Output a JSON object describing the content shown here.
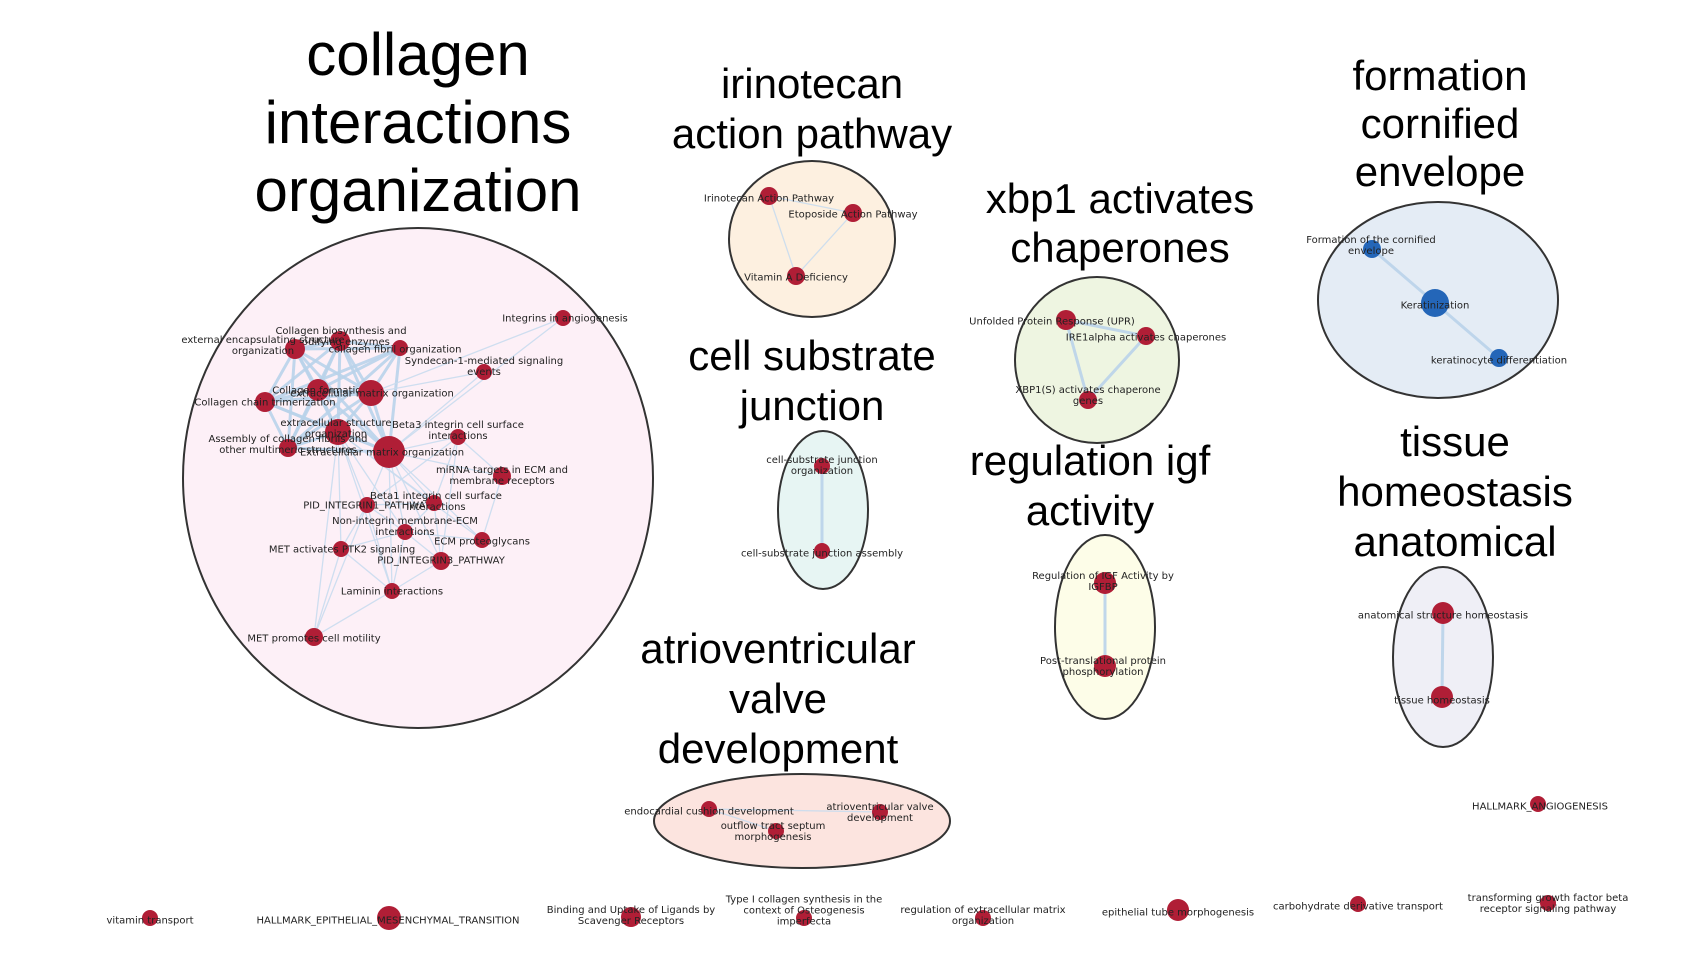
{
  "colors": {
    "node_red": "#b01e36",
    "node_blue": "#2466b8",
    "edge": "#b9d3ea",
    "edge_thin": "#c9dcee",
    "cluster_stroke": "#333333"
  },
  "clusters": [
    {
      "id": "collagen",
      "title_lines": [
        "collagen",
        "interactions",
        "organization"
      ],
      "fill": "#fdf0f7"
    },
    {
      "id": "irinotecan",
      "title_lines": [
        "irinotecan",
        "action pathway"
      ],
      "fill": "#fdf0e0"
    },
    {
      "id": "cornified",
      "title_lines": [
        "formation",
        "cornified",
        "envelope"
      ],
      "fill": "#e4ecf5"
    },
    {
      "id": "xbp1",
      "title_lines": [
        "xbp1 activates",
        "chaperones"
      ],
      "fill": "#eef5e1"
    },
    {
      "id": "cellsub",
      "title_lines": [
        "cell substrate",
        "junction"
      ],
      "fill": "#e7f5f3"
    },
    {
      "id": "igf",
      "title_lines": [
        "regulation igf",
        "activity"
      ],
      "fill": "#fdfde8"
    },
    {
      "id": "tissue",
      "title_lines": [
        "tissue",
        "homeostasis",
        "anatomical"
      ],
      "fill": "#efeff6"
    },
    {
      "id": "avv",
      "title_lines": [
        "atrioventricular",
        "valve",
        "development"
      ],
      "fill": "#fce4df"
    }
  ],
  "nodes": [
    {
      "id": "c1",
      "label_lines": [
        "Integrins in angiogenesis"
      ],
      "color": "red"
    },
    {
      "id": "c2",
      "label_lines": [
        "Collagen biosynthesis and",
        "modifying enzymes"
      ],
      "color": "red"
    },
    {
      "id": "c3",
      "label_lines": [
        "external encapsulating structure",
        "organization"
      ],
      "color": "red"
    },
    {
      "id": "c4",
      "label_lines": [
        "collagen fibril organization"
      ],
      "color": "red"
    },
    {
      "id": "c5",
      "label_lines": [
        "Syndecan-1-mediated signaling",
        "events"
      ],
      "color": "red"
    },
    {
      "id": "c6",
      "label_lines": [
        "Collagen formation"
      ],
      "color": "red"
    },
    {
      "id": "c7",
      "label_lines": [
        "extracellular matrix organization"
      ],
      "color": "red"
    },
    {
      "id": "c8",
      "label_lines": [
        "Collagen chain trimerization"
      ],
      "color": "red"
    },
    {
      "id": "c9",
      "label_lines": [
        "extracellular structure",
        "organization"
      ],
      "color": "red"
    },
    {
      "id": "c10",
      "label_lines": [
        "Beta3 integrin cell surface",
        "interactions"
      ],
      "color": "red"
    },
    {
      "id": "c11",
      "label_lines": [
        "Assembly of collagen fibrils and",
        "other multimeric structures"
      ],
      "color": "red"
    },
    {
      "id": "c12",
      "label_lines": [
        "Extracellular matrix organization"
      ],
      "color": "red"
    },
    {
      "id": "c13",
      "label_lines": [
        "miRNA targets in ECM and",
        "membrane receptors"
      ],
      "color": "red"
    },
    {
      "id": "c14",
      "label_lines": [
        "PID_INTEGRIN1_PATHWAY"
      ],
      "color": "red"
    },
    {
      "id": "c15",
      "label_lines": [
        "Beta1 integrin cell surface",
        "interactions"
      ],
      "color": "red"
    },
    {
      "id": "c16",
      "label_lines": [
        "Non-integrin membrane-ECM",
        "interactions"
      ],
      "color": "red"
    },
    {
      "id": "c17",
      "label_lines": [
        "ECM proteoglycans"
      ],
      "color": "red"
    },
    {
      "id": "c18",
      "label_lines": [
        "MET activates PTK2 signaling"
      ],
      "color": "red"
    },
    {
      "id": "c19",
      "label_lines": [
        "PID_INTEGRIN3_PATHWAY"
      ],
      "color": "red"
    },
    {
      "id": "c20",
      "label_lines": [
        "Laminin interactions"
      ],
      "color": "red"
    },
    {
      "id": "c21",
      "label_lines": [
        "MET promotes cell motility"
      ],
      "color": "red"
    },
    {
      "id": "i1",
      "label_lines": [
        "Irinotecan Action Pathway"
      ],
      "color": "red"
    },
    {
      "id": "i2",
      "label_lines": [
        "Etoposide Action Pathway"
      ],
      "color": "red"
    },
    {
      "id": "i3",
      "label_lines": [
        "Vitamin A Deficiency"
      ],
      "color": "red"
    },
    {
      "id": "f1",
      "label_lines": [
        "Formation of the cornified",
        "envelope"
      ],
      "color": "blue"
    },
    {
      "id": "f2",
      "label_lines": [
        "Keratinization"
      ],
      "color": "blue"
    },
    {
      "id": "f3",
      "label_lines": [
        "keratinocyte differentiation"
      ],
      "color": "blue"
    },
    {
      "id": "x1",
      "label_lines": [
        "Unfolded Protein Response (UPR)"
      ],
      "color": "red"
    },
    {
      "id": "x2",
      "label_lines": [
        "IRE1alpha activates chaperones"
      ],
      "color": "red"
    },
    {
      "id": "x3",
      "label_lines": [
        "XBP1(S) activates chaperone",
        "genes"
      ],
      "color": "red"
    },
    {
      "id": "s1",
      "label_lines": [
        "cell-substrate junction",
        "organization"
      ],
      "color": "red"
    },
    {
      "id": "s2",
      "label_lines": [
        "cell-substrate junction assembly"
      ],
      "color": "red"
    },
    {
      "id": "g1",
      "label_lines": [
        "Regulation of IGF Activity by",
        "IGFBP"
      ],
      "color": "red"
    },
    {
      "id": "g2",
      "label_lines": [
        "Post-translational protein",
        "phosphorylation"
      ],
      "color": "red"
    },
    {
      "id": "t1",
      "label_lines": [
        "anatomical structure homeostasis"
      ],
      "color": "red"
    },
    {
      "id": "t2",
      "label_lines": [
        "tissue homeostasis"
      ],
      "color": "red"
    },
    {
      "id": "a1",
      "label_lines": [
        "endocardial cushion development"
      ],
      "color": "red"
    },
    {
      "id": "a2",
      "label_lines": [
        "atrioventricular valve",
        "development"
      ],
      "color": "red"
    },
    {
      "id": "a3",
      "label_lines": [
        "outflow tract septum",
        "morphogenesis"
      ],
      "color": "red"
    },
    {
      "id": "h1",
      "label_lines": [
        "HALLMARK_ANGIOGENESIS"
      ],
      "color": "red"
    },
    {
      "id": "b1",
      "label_lines": [
        "vitamin transport"
      ],
      "color": "red"
    },
    {
      "id": "b2",
      "label_lines": [
        "HALLMARK_EPITHELIAL_MESENCHYMAL_TRANSITION"
      ],
      "color": "red"
    },
    {
      "id": "b3",
      "label_lines": [
        "Binding and Uptake of Ligands by",
        "Scavenger Receptors"
      ],
      "color": "red"
    },
    {
      "id": "b4",
      "label_lines": [
        "Type I collagen synthesis in the",
        "context of Osteogenesis",
        "imperfecta"
      ],
      "color": "red"
    },
    {
      "id": "b5",
      "label_lines": [
        "regulation of extracellular matrix",
        "organization"
      ],
      "color": "red"
    },
    {
      "id": "b6",
      "label_lines": [
        "epithelial tube morphogenesis"
      ],
      "color": "red"
    },
    {
      "id": "b7",
      "label_lines": [
        "carbohydrate derivative transport"
      ],
      "color": "red"
    },
    {
      "id": "b8",
      "label_lines": [
        "transforming growth factor beta",
        "receptor signaling pathway"
      ],
      "color": "red"
    }
  ],
  "edges": [
    [
      "c2",
      "c4"
    ],
    [
      "c2",
      "c6"
    ],
    [
      "c2",
      "c3"
    ],
    [
      "c2",
      "c8"
    ],
    [
      "c2",
      "c7"
    ],
    [
      "c2",
      "c9"
    ],
    [
      "c2",
      "c12"
    ],
    [
      "c2",
      "c11"
    ],
    [
      "c3",
      "c4"
    ],
    [
      "c3",
      "c6"
    ],
    [
      "c3",
      "c7"
    ],
    [
      "c3",
      "c8"
    ],
    [
      "c3",
      "c9"
    ],
    [
      "c3",
      "c11"
    ],
    [
      "c3",
      "c12"
    ],
    [
      "c4",
      "c6"
    ],
    [
      "c4",
      "c7"
    ],
    [
      "c4",
      "c8"
    ],
    [
      "c4",
      "c11"
    ],
    [
      "c4",
      "c12"
    ],
    [
      "c6",
      "c7"
    ],
    [
      "c6",
      "c8"
    ],
    [
      "c6",
      "c9"
    ],
    [
      "c6",
      "c11"
    ],
    [
      "c6",
      "c12"
    ],
    [
      "c7",
      "c9"
    ],
    [
      "c7",
      "c12"
    ],
    [
      "c7",
      "c11"
    ],
    [
      "c7",
      "c8"
    ],
    [
      "c8",
      "c9"
    ],
    [
      "c8",
      "c11"
    ],
    [
      "c8",
      "c12"
    ],
    [
      "c9",
      "c11"
    ],
    [
      "c9",
      "c12"
    ],
    [
      "c11",
      "c12"
    ],
    [
      "c12",
      "c10"
    ],
    [
      "c12",
      "c13"
    ],
    [
      "c12",
      "c14"
    ],
    [
      "c12",
      "c15"
    ],
    [
      "c12",
      "c16"
    ],
    [
      "c12",
      "c17"
    ],
    [
      "c12",
      "c19"
    ],
    [
      "c12",
      "c20"
    ],
    [
      "c12",
      "c5"
    ],
    [
      "c12",
      "c1"
    ],
    [
      "c9",
      "c14"
    ],
    [
      "c9",
      "c15"
    ],
    [
      "c9",
      "c16"
    ],
    [
      "c9",
      "c17"
    ],
    [
      "c9",
      "c20"
    ],
    [
      "c9",
      "c18"
    ],
    [
      "c10",
      "c14"
    ],
    [
      "c10",
      "c19"
    ],
    [
      "c10",
      "c15"
    ],
    [
      "c10",
      "c13"
    ],
    [
      "c15",
      "c16"
    ],
    [
      "c15",
      "c19"
    ],
    [
      "c15",
      "c14"
    ],
    [
      "c16",
      "c17"
    ],
    [
      "c16",
      "c19"
    ],
    [
      "c16",
      "c20"
    ],
    [
      "c16",
      "c18"
    ],
    [
      "c14",
      "c18"
    ],
    [
      "c14",
      "c20"
    ],
    [
      "c14",
      "c16"
    ],
    [
      "c18",
      "c20"
    ],
    [
      "c18",
      "c21"
    ],
    [
      "c19",
      "c20"
    ],
    [
      "c20",
      "c21"
    ],
    [
      "c21",
      "c14"
    ],
    [
      "c21",
      "c9"
    ],
    [
      "c13",
      "c17"
    ],
    [
      "c5",
      "c7"
    ],
    [
      "c1",
      "c7"
    ],
    [
      "i1",
      "i2"
    ],
    [
      "i1",
      "i3"
    ],
    [
      "i2",
      "i3"
    ],
    [
      "f1",
      "f2"
    ],
    [
      "f2",
      "f3"
    ],
    [
      "x1",
      "x2"
    ],
    [
      "x1",
      "x3"
    ],
    [
      "x2",
      "x3"
    ],
    [
      "s1",
      "s2"
    ],
    [
      "g1",
      "g2"
    ],
    [
      "t1",
      "t2"
    ],
    [
      "a1",
      "a2"
    ],
    [
      "a1",
      "a3"
    ]
  ]
}
